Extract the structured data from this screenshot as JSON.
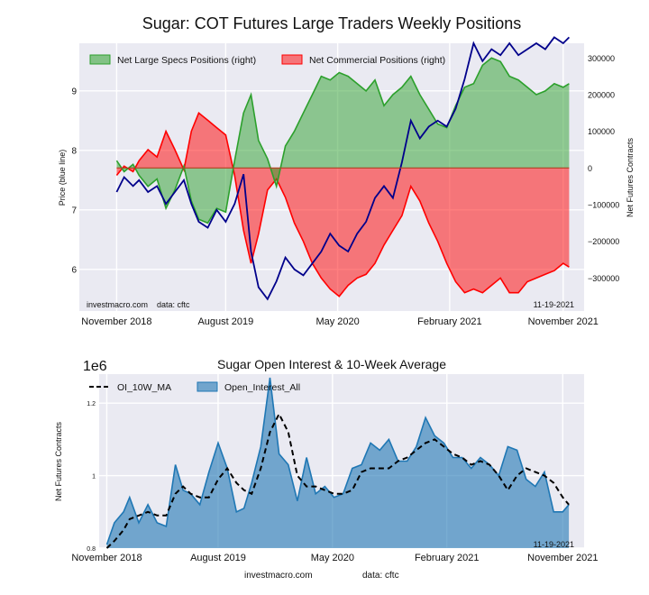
{
  "chart_data": [
    {
      "type": "area",
      "title": "Sugar: COT Futures Large Traders Weekly Positions",
      "ylabel_left": "Price (blue line)",
      "ylabel_right": "Net Futures Contracts",
      "x_ticks": [
        "November 2018",
        "August 2019",
        "May 2020",
        "February 2021",
        "November 2021"
      ],
      "y_left_ticks": [
        6,
        7,
        8,
        9
      ],
      "y_left_range": [
        5.3,
        9.8
      ],
      "y_right_ticks": [
        -300000,
        -200000,
        -100000,
        0,
        100000,
        200000,
        300000
      ],
      "y_right_tick_labels": [
        "−300000",
        "−200000",
        "−100000",
        "0",
        "100000",
        "200000",
        "300000"
      ],
      "y_right_range": [
        -390000,
        340000
      ],
      "legend": [
        "Net Large Specs Positions (right)",
        "Net Commercial Positions (right)"
      ],
      "legend_placement": "top-left",
      "grid": true,
      "colors": {
        "specs": "#2ca02c",
        "commercial": "#ff0000",
        "price": "#00008b",
        "background": "#eaeaf2"
      },
      "annotation_left": "investmacro.com    data: cftc",
      "annotation_right": "11-19-2021",
      "x": [
        2018.85,
        2018.9,
        2018.96,
        2019.0,
        2019.06,
        2019.12,
        2019.18,
        2019.24,
        2019.3,
        2019.35,
        2019.4,
        2019.46,
        2019.52,
        2019.58,
        2019.64,
        2019.7,
        2019.75,
        2019.8,
        2019.86,
        2019.92,
        2019.98,
        2020.04,
        2020.1,
        2020.16,
        2020.22,
        2020.28,
        2020.34,
        2020.4,
        2020.46,
        2020.52,
        2020.58,
        2020.64,
        2020.7,
        2020.76,
        2020.82,
        2020.88,
        2020.94,
        2021.0,
        2021.06,
        2021.12,
        2021.18,
        2021.24,
        2021.3,
        2021.36,
        2021.42,
        2021.48,
        2021.54,
        2021.6,
        2021.66,
        2021.72,
        2021.78,
        2021.84,
        2021.88
      ],
      "specs": [
        20000,
        -10000,
        10000,
        -20000,
        -50000,
        -30000,
        -110000,
        -60000,
        5000,
        -90000,
        -140000,
        -150000,
        -110000,
        -120000,
        20000,
        150000,
        200000,
        75000,
        25000,
        -50000,
        60000,
        100000,
        150000,
        200000,
        250000,
        240000,
        260000,
        250000,
        230000,
        210000,
        240000,
        170000,
        200000,
        220000,
        250000,
        200000,
        160000,
        120000,
        110000,
        170000,
        220000,
        230000,
        280000,
        300000,
        290000,
        250000,
        240000,
        220000,
        200000,
        210000,
        230000,
        220000,
        230000
      ],
      "commercial": [
        -20000,
        5000,
        -10000,
        20000,
        50000,
        30000,
        100000,
        50000,
        -5000,
        100000,
        150000,
        130000,
        110000,
        90000,
        -20000,
        -170000,
        -260000,
        -180000,
        -60000,
        -30000,
        -80000,
        -150000,
        -200000,
        -260000,
        -300000,
        -330000,
        -350000,
        -320000,
        -300000,
        -290000,
        -260000,
        -210000,
        -170000,
        -130000,
        -50000,
        -90000,
        -150000,
        -200000,
        -260000,
        -310000,
        -340000,
        -330000,
        -340000,
        -320000,
        -300000,
        -340000,
        -340000,
        -310000,
        -300000,
        -290000,
        -280000,
        -260000,
        -270000
      ],
      "price": [
        7.3,
        7.55,
        7.4,
        7.5,
        7.3,
        7.4,
        7.1,
        7.3,
        7.5,
        7.1,
        6.8,
        6.7,
        7.0,
        6.8,
        7.1,
        7.6,
        6.3,
        5.7,
        5.5,
        5.8,
        6.2,
        6.0,
        5.9,
        6.1,
        6.3,
        6.6,
        6.4,
        6.3,
        6.6,
        6.8,
        7.2,
        7.4,
        7.2,
        7.8,
        8.5,
        8.2,
        8.4,
        8.5,
        8.4,
        8.7,
        9.2,
        9.8,
        9.5,
        9.7,
        9.6,
        9.8,
        9.6,
        9.7,
        9.8,
        9.7,
        9.9,
        9.8,
        9.9
      ]
    },
    {
      "type": "area",
      "title": "Sugar Open Interest & 10-Week Average",
      "scale_label": "1e6",
      "ylabel": "Net Futures Contracts",
      "x_ticks": [
        "November 2018",
        "August 2019",
        "May 2020",
        "February 2021",
        "November 2021"
      ],
      "y_ticks": [
        0.8,
        1.0,
        1.2
      ],
      "y_range": [
        0.8,
        1.28
      ],
      "legend": [
        "OI_10W_MA",
        "Open_Interest_All"
      ],
      "legend_placement": "top-left",
      "grid": true,
      "colors": {
        "oi": "#1f77b4",
        "ma": "#000000",
        "background": "#eaeaf2"
      },
      "annotation_right": "11-19-2021",
      "footer": [
        "investmacro.com",
        "data: cftc"
      ],
      "x": [
        2018.85,
        2018.9,
        2018.96,
        2019.0,
        2019.06,
        2019.12,
        2019.18,
        2019.24,
        2019.3,
        2019.35,
        2019.4,
        2019.46,
        2019.52,
        2019.58,
        2019.64,
        2019.7,
        2019.75,
        2019.8,
        2019.86,
        2019.92,
        2019.98,
        2020.04,
        2020.1,
        2020.16,
        2020.22,
        2020.28,
        2020.34,
        2020.4,
        2020.46,
        2020.52,
        2020.58,
        2020.64,
        2020.7,
        2020.76,
        2020.82,
        2020.88,
        2020.94,
        2021.0,
        2021.06,
        2021.12,
        2021.18,
        2021.24,
        2021.3,
        2021.36,
        2021.42,
        2021.48,
        2021.54,
        2021.6,
        2021.66,
        2021.72,
        2021.78,
        2021.84,
        2021.88
      ],
      "open_interest": [
        0.81,
        0.87,
        0.9,
        0.94,
        0.87,
        0.92,
        0.87,
        0.86,
        1.03,
        0.96,
        0.95,
        0.92,
        1.01,
        1.09,
        1.02,
        0.9,
        0.91,
        0.98,
        1.08,
        1.27,
        1.06,
        1.03,
        0.93,
        1.05,
        0.95,
        0.97,
        0.94,
        0.95,
        1.02,
        1.03,
        1.09,
        1.07,
        1.1,
        1.04,
        1.04,
        1.08,
        1.16,
        1.11,
        1.09,
        1.05,
        1.05,
        1.02,
        1.05,
        1.03,
        1.0,
        1.08,
        1.07,
        0.99,
        0.97,
        1.01,
        0.9,
        0.9,
        0.92
      ],
      "oi_10w_ma": [
        0.8,
        0.82,
        0.85,
        0.88,
        0.89,
        0.9,
        0.89,
        0.89,
        0.95,
        0.97,
        0.95,
        0.94,
        0.94,
        0.99,
        1.02,
        0.98,
        0.96,
        0.95,
        1.02,
        1.12,
        1.17,
        1.12,
        1.0,
        0.97,
        0.97,
        0.96,
        0.95,
        0.95,
        0.96,
        1.01,
        1.02,
        1.02,
        1.02,
        1.04,
        1.05,
        1.07,
        1.09,
        1.1,
        1.08,
        1.06,
        1.05,
        1.03,
        1.04,
        1.03,
        1.0,
        0.96,
        1.0,
        1.02,
        1.01,
        1.0,
        0.98,
        0.94,
        0.92
      ]
    }
  ]
}
